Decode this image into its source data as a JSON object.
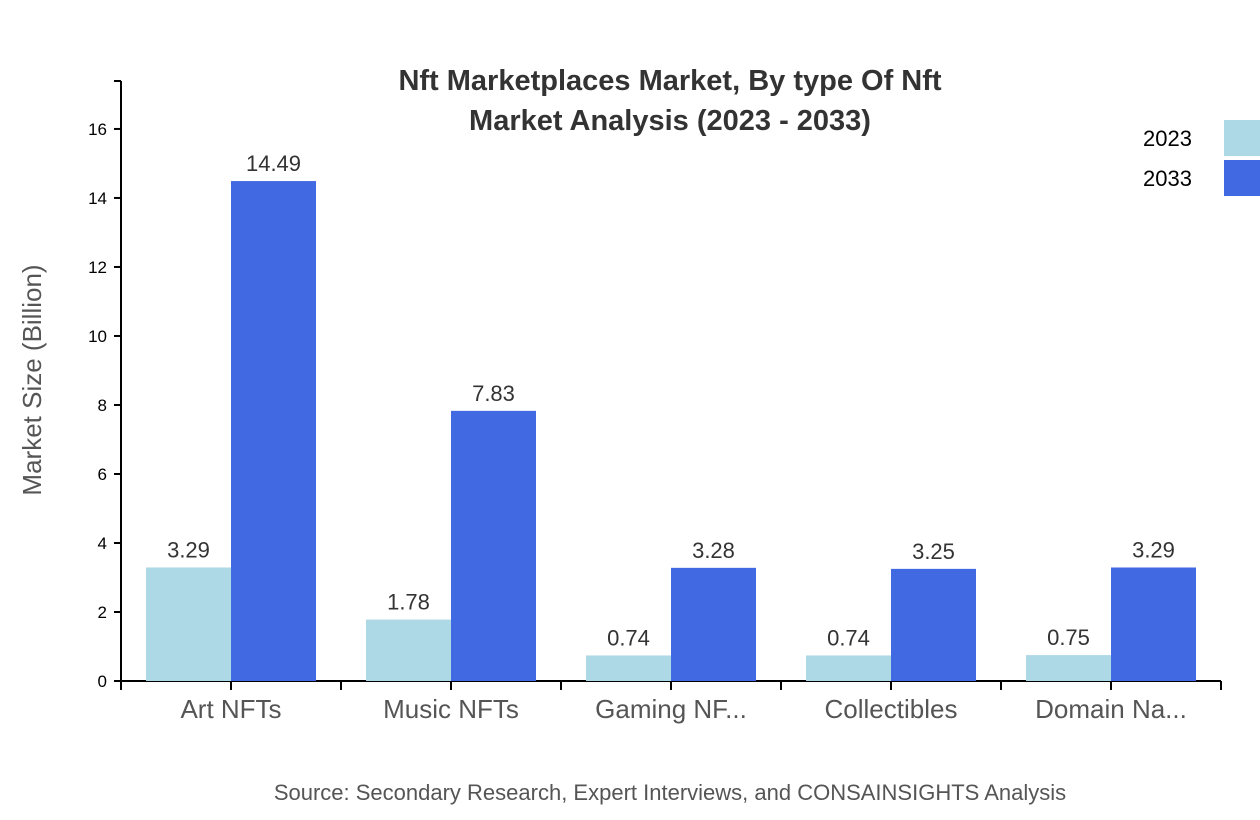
{
  "chart_data": {
    "type": "bar",
    "title": [
      "Nft Marketplaces Market, By type Of Nft",
      "Market Analysis (2023 - 2033)"
    ],
    "xlabel": "",
    "ylabel": "Market Size (Billion)",
    "ylim": [
      0,
      17.39
    ],
    "yticks": [
      0,
      2,
      4,
      6,
      8,
      10,
      12,
      14,
      16
    ],
    "categories": [
      "Art NFTs",
      "Music NFTs",
      "Gaming NF...",
      "Collectibles",
      "Domain Na..."
    ],
    "series": [
      {
        "name": "2023",
        "color": "#ADD8E6",
        "values": [
          3.29,
          1.78,
          0.74,
          0.74,
          0.75
        ]
      },
      {
        "name": "2033",
        "color": "#4169E1",
        "values": [
          14.49,
          7.83,
          3.28,
          3.25,
          3.29
        ]
      }
    ],
    "grid": false,
    "legend_position": "top-right",
    "source": "Source: Secondary Research, Expert Interviews, and CONSAINSIGHTS Analysis"
  }
}
